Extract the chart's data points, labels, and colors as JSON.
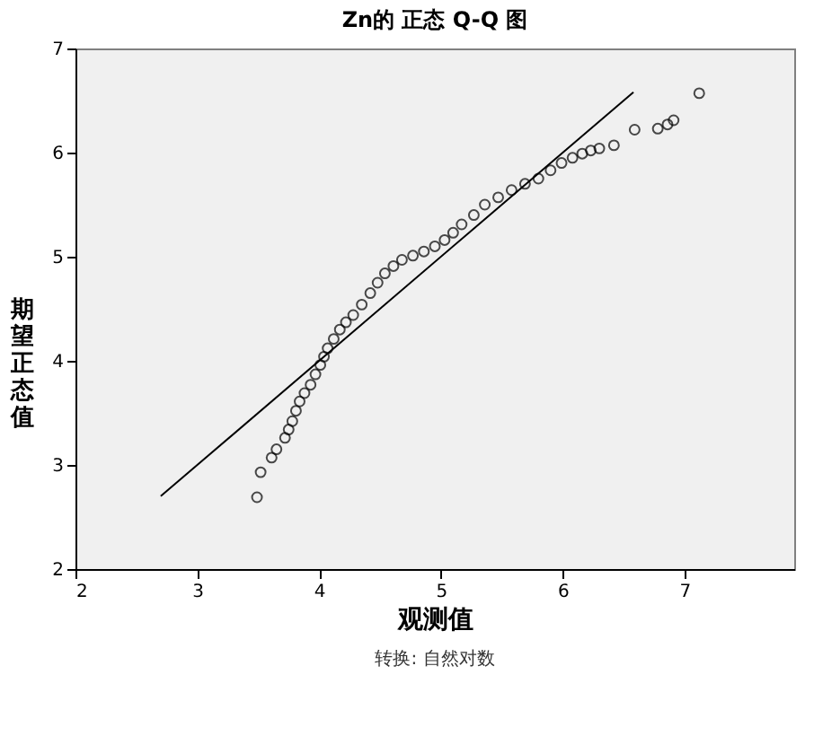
{
  "chart_data": {
    "type": "scatter",
    "title": "Zn的 正态 Q-Q 图",
    "xlabel": "观测值",
    "ylabel": "期望正态值",
    "annotations": [
      "转换: 自然对数"
    ],
    "xlim": [
      2,
      7.9
    ],
    "ylim": [
      2,
      7
    ],
    "xticks": [
      2,
      3,
      4,
      5,
      6,
      7
    ],
    "yticks": [
      2,
      3,
      4,
      5,
      6,
      7
    ],
    "grid": false,
    "marker": "circle",
    "series": [
      {
        "color": "#000000",
        "x": [
          3.49,
          3.52,
          3.61,
          3.65,
          3.72,
          3.75,
          3.78,
          3.81,
          3.84,
          3.88,
          3.93,
          3.97,
          4.01,
          4.04,
          4.07,
          4.12,
          4.17,
          4.22,
          4.28,
          4.35,
          4.42,
          4.48,
          4.54,
          4.61,
          4.68,
          4.77,
          4.86,
          4.95,
          5.03,
          5.1,
          5.17,
          5.27,
          5.36,
          5.47,
          5.58,
          5.69,
          5.8,
          5.9,
          5.99,
          6.08,
          6.16,
          6.23,
          6.3,
          6.42,
          6.59,
          6.78,
          6.86,
          6.91,
          7.12
        ],
        "values": [
          2.69,
          2.93,
          3.07,
          3.15,
          3.26,
          3.34,
          3.42,
          3.52,
          3.61,
          3.69,
          3.77,
          3.87,
          3.96,
          4.04,
          4.12,
          4.21,
          4.3,
          4.37,
          4.44,
          4.54,
          4.65,
          4.75,
          4.84,
          4.91,
          4.97,
          5.01,
          5.05,
          5.1,
          5.16,
          5.23,
          5.31,
          5.4,
          5.5,
          5.57,
          5.64,
          5.7,
          5.75,
          5.83,
          5.9,
          5.95,
          5.99,
          6.02,
          6.04,
          6.07,
          6.22,
          6.23,
          6.27,
          6.31,
          6.57
        ]
      },
      {
        "type": "line",
        "marker": "none",
        "color": "#000000",
        "x": [
          2.7,
          6.58
        ],
        "values": [
          2.7,
          6.58
        ]
      }
    ]
  }
}
